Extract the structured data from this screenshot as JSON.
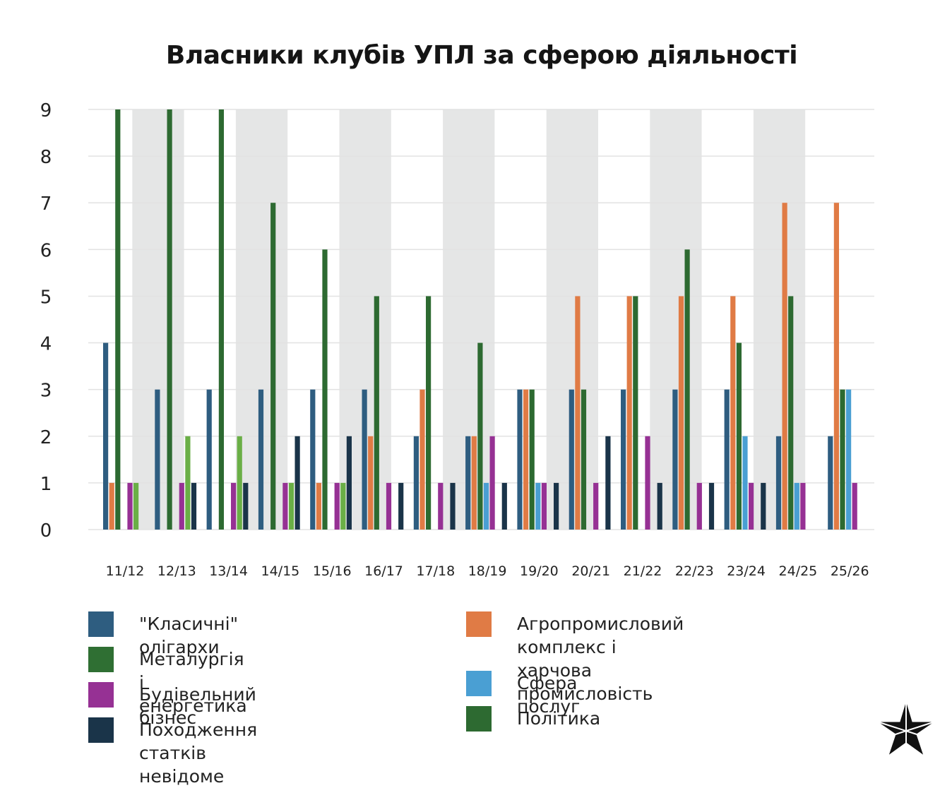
{
  "title": "Власники клубів УПЛ за сферою діяльності",
  "colors": {
    "oligarchs": "#2e5d80",
    "agro": "#e07b45",
    "metallurgy": "#2f6f33",
    "metallurgy_light": "#6aaf46",
    "construction": "#963194",
    "services": "#4a9fd3",
    "unknown": "#1a3449",
    "politics": "#2d6a31",
    "band": "#e5e6e6",
    "grid": "#e2e2e2"
  },
  "legend": {
    "items_left": [
      {
        "key": "oligarchs",
        "label": "\"Класичні\" олігархи"
      },
      {
        "key": "metallurgy",
        "label": "Металургія і енергетика"
      },
      {
        "key": "construction",
        "label": "Будівельний бізнес"
      },
      {
        "key": "unknown",
        "label": "Походження статків невідоме"
      }
    ],
    "items_right": [
      {
        "key": "agro",
        "label_line1": "Агропромисловий комплекс і",
        "label_line2": "харчова промисловість"
      },
      {
        "key": "services",
        "label": "Сфера послуг"
      },
      {
        "key": "politics",
        "label": "Політика"
      }
    ]
  },
  "logo": {
    "icon": "star-logo-icon"
  },
  "chart_data": {
    "type": "bar",
    "title": "Власники клубів УПЛ за сферою діяльності",
    "xlabel": "",
    "ylabel": "",
    "ylim": [
      0,
      9
    ],
    "yticks": [
      "0",
      "1",
      "2",
      "3",
      "4",
      "5",
      "6",
      "7",
      "8",
      "9"
    ],
    "grid": true,
    "legend_position": "bottom",
    "categories": [
      "11/12",
      "12/13",
      "13/14",
      "14/15",
      "15/16",
      "16/17",
      "17/18",
      "18/19",
      "19/20",
      "20/21",
      "21/22",
      "22/23",
      "23/24",
      "24/25",
      "25/26"
    ],
    "series": [
      {
        "name": "\"Класичні\" олігархи",
        "key": "oligarchs",
        "values": [
          4,
          3,
          3,
          3,
          3,
          3,
          2,
          2,
          3,
          3,
          3,
          3,
          3,
          2,
          2
        ]
      },
      {
        "name": "Агропромисловий комплекс і харчова промисловість",
        "key": "agro",
        "values": [
          1,
          0,
          0,
          0,
          1,
          2,
          3,
          2,
          3,
          5,
          5,
          5,
          5,
          7,
          7
        ]
      },
      {
        "name": "Політика",
        "key": "politics",
        "values": [
          9,
          9,
          9,
          7,
          6,
          5,
          5,
          4,
          3,
          3,
          5,
          6,
          4,
          5,
          3
        ]
      },
      {
        "name": "Сфера послуг",
        "key": "services",
        "values": [
          0,
          0,
          0,
          0,
          0,
          0,
          0,
          1,
          1,
          0,
          0,
          0,
          2,
          1,
          3
        ]
      },
      {
        "name": "Будівельний бізнес",
        "key": "construction",
        "values": [
          1,
          1,
          1,
          1,
          1,
          1,
          1,
          2,
          1,
          1,
          2,
          1,
          1,
          1,
          1
        ]
      },
      {
        "name": "Металургія і енергетика",
        "key": "metallurgy_light",
        "values": [
          1,
          2,
          2,
          1,
          1,
          0,
          0,
          0,
          0,
          0,
          0,
          0,
          0,
          0,
          0
        ]
      },
      {
        "name": "Походження статків невідоме",
        "key": "unknown",
        "values": [
          0,
          1,
          1,
          2,
          2,
          1,
          1,
          1,
          1,
          2,
          1,
          1,
          1,
          0,
          0
        ]
      }
    ]
  }
}
